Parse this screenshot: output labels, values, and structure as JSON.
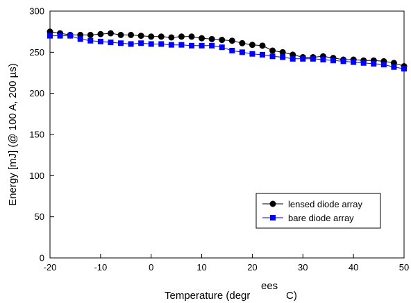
{
  "chart_data": {
    "type": "line",
    "xlabel_parts": [
      "Temperature (degr",
      "ees",
      "C)"
    ],
    "ylabel": "Energy [mJ] (@ 100 A, 200 µs)",
    "xlim": [
      -20,
      50
    ],
    "ylim": [
      0,
      300
    ],
    "xticks": [
      -20,
      -10,
      0,
      10,
      20,
      30,
      40,
      50
    ],
    "yticks": [
      0,
      50,
      100,
      150,
      200,
      250,
      300
    ],
    "grid": false,
    "legend_position": "bottom-right",
    "x": [
      -20,
      -18,
      -16,
      -14,
      -12,
      -10,
      -8,
      -6,
      -4,
      -2,
      0,
      2,
      4,
      6,
      8,
      10,
      12,
      14,
      16,
      18,
      20,
      22,
      24,
      26,
      28,
      30,
      32,
      34,
      36,
      38,
      40,
      42,
      44,
      46,
      48,
      50
    ],
    "series": [
      {
        "name": "lensed diode array",
        "marker": "circle",
        "color": "#000000",
        "values": [
          275,
          273,
          271,
          271,
          271,
          272,
          273,
          271,
          271,
          270,
          269,
          269,
          268,
          269,
          269,
          267,
          266,
          265,
          264,
          261,
          259,
          258,
          252,
          250,
          247,
          244,
          244,
          245,
          243,
          241,
          241,
          240,
          240,
          239,
          237,
          233
        ]
      },
      {
        "name": "bare diode array",
        "marker": "square",
        "color": "#0000ff",
        "values": [
          270,
          270,
          270,
          266,
          264,
          263,
          262,
          261,
          260,
          261,
          260,
          260,
          259,
          259,
          258,
          258,
          258,
          256,
          252,
          250,
          248,
          247,
          245,
          244,
          242,
          242,
          242,
          241,
          240,
          239,
          238,
          237,
          236,
          235,
          232,
          230
        ]
      }
    ]
  }
}
